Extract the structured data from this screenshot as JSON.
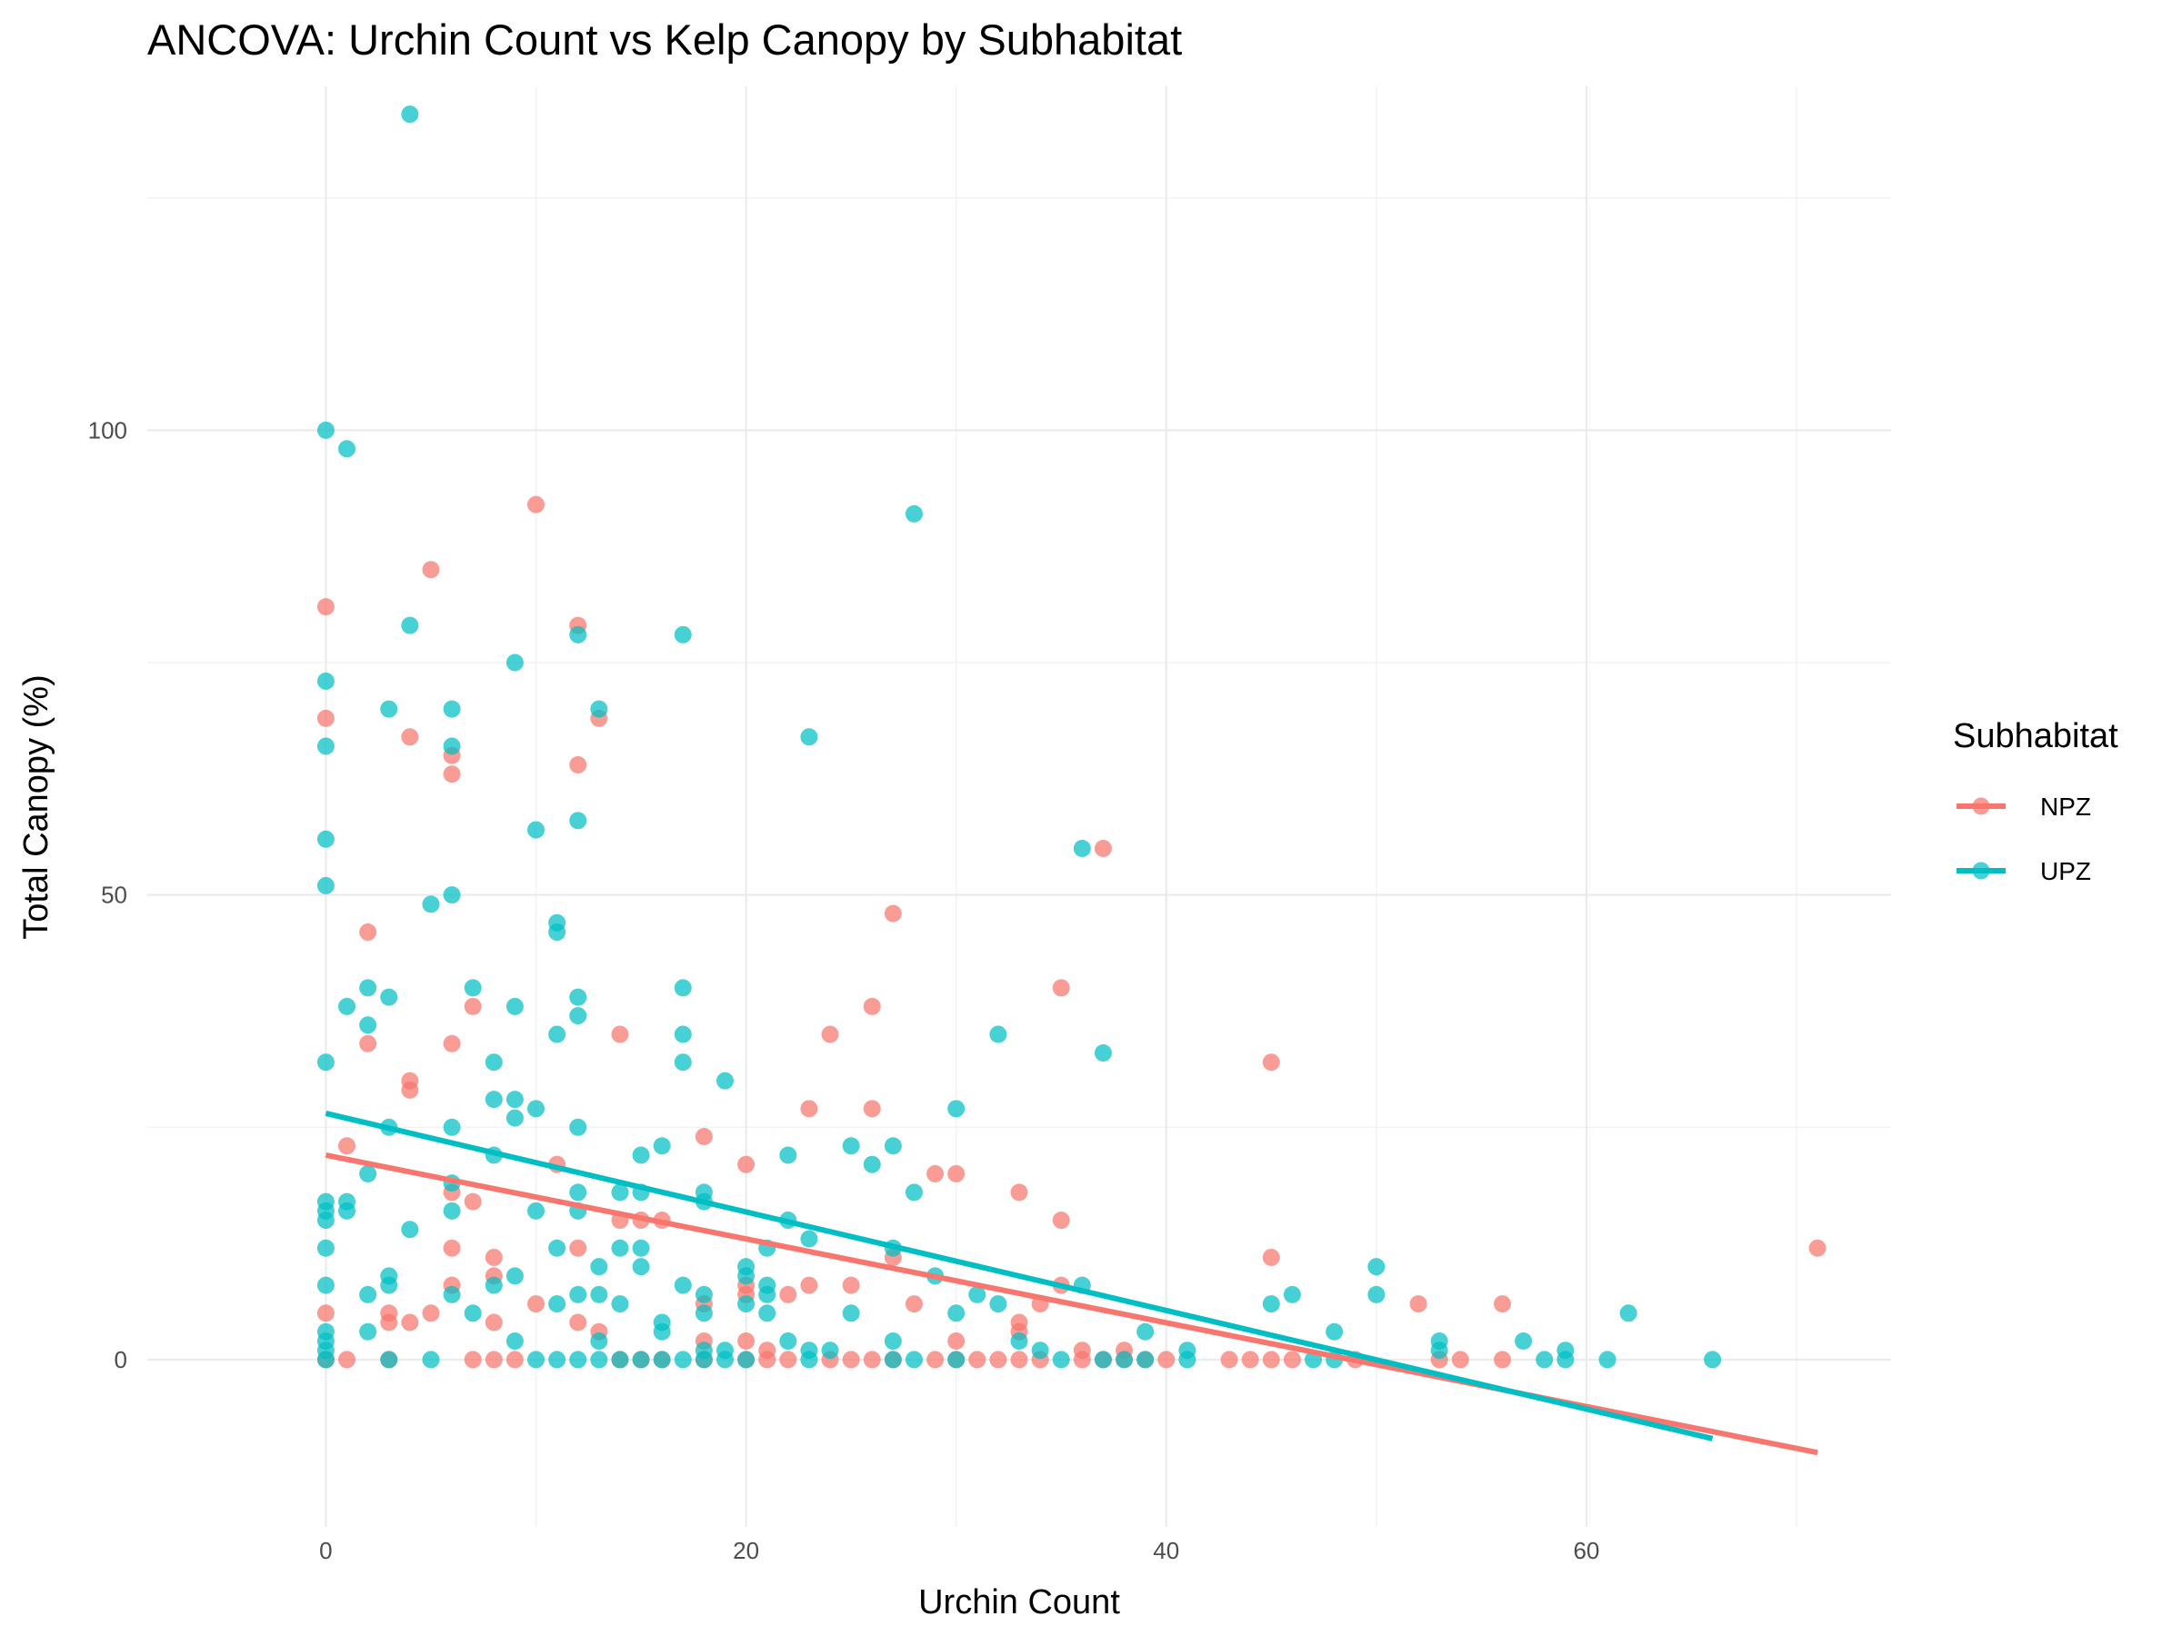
{
  "chart_data": {
    "type": "scatter",
    "title": "ANCOVA: Urchin Count vs Kelp Canopy by Subhabitat",
    "xlabel": "Urchin Count",
    "ylabel": "Total Canopy (%)",
    "xlim": [
      -8.5,
      74.5
    ],
    "ylim": [
      -18,
      137
    ],
    "x_ticks": [
      0,
      20,
      40,
      60
    ],
    "y_ticks": [
      0,
      50,
      100
    ],
    "grid": true,
    "legend": {
      "title": "Subhabitat",
      "position": "right"
    },
    "series": [
      {
        "name": "NPZ",
        "color": "#F8766D",
        "regression_line": {
          "x": [
            0,
            71
          ],
          "y": [
            22,
            -10
          ]
        },
        "points": [
          [
            0,
            81
          ],
          [
            0,
            69
          ],
          [
            0,
            5
          ],
          [
            0,
            0
          ],
          [
            1,
            23
          ],
          [
            1,
            0
          ],
          [
            2,
            46
          ],
          [
            2,
            34
          ],
          [
            3,
            5
          ],
          [
            3,
            4
          ],
          [
            3,
            0
          ],
          [
            4,
            67
          ],
          [
            4,
            30
          ],
          [
            4,
            29
          ],
          [
            4,
            4
          ],
          [
            5,
            85
          ],
          [
            5,
            5
          ],
          [
            6,
            65
          ],
          [
            6,
            63
          ],
          [
            6,
            34
          ],
          [
            6,
            18
          ],
          [
            6,
            12
          ],
          [
            6,
            8
          ],
          [
            7,
            38
          ],
          [
            7,
            17
          ],
          [
            7,
            0
          ],
          [
            8,
            11
          ],
          [
            8,
            9
          ],
          [
            8,
            4
          ],
          [
            8,
            0
          ],
          [
            9,
            0
          ],
          [
            10,
            92
          ],
          [
            10,
            6
          ],
          [
            11,
            21
          ],
          [
            12,
            79
          ],
          [
            12,
            64
          ],
          [
            12,
            12
          ],
          [
            12,
            4
          ],
          [
            13,
            69
          ],
          [
            13,
            3
          ],
          [
            14,
            35
          ],
          [
            14,
            15
          ],
          [
            14,
            0
          ],
          [
            15,
            15
          ],
          [
            15,
            0
          ],
          [
            16,
            15
          ],
          [
            16,
            0
          ],
          [
            18,
            24
          ],
          [
            18,
            6
          ],
          [
            18,
            2
          ],
          [
            18,
            0
          ],
          [
            20,
            21
          ],
          [
            20,
            8
          ],
          [
            20,
            7
          ],
          [
            20,
            2
          ],
          [
            20,
            0
          ],
          [
            21,
            1
          ],
          [
            21,
            0
          ],
          [
            22,
            7
          ],
          [
            22,
            0
          ],
          [
            23,
            27
          ],
          [
            23,
            8
          ],
          [
            24,
            35
          ],
          [
            24,
            0
          ],
          [
            25,
            8
          ],
          [
            25,
            0
          ],
          [
            26,
            38
          ],
          [
            26,
            27
          ],
          [
            26,
            0
          ],
          [
            27,
            48
          ],
          [
            27,
            11
          ],
          [
            27,
            0
          ],
          [
            28,
            6
          ],
          [
            29,
            20
          ],
          [
            29,
            0
          ],
          [
            30,
            20
          ],
          [
            30,
            2
          ],
          [
            30,
            0
          ],
          [
            31,
            0
          ],
          [
            32,
            0
          ],
          [
            33,
            18
          ],
          [
            33,
            4
          ],
          [
            33,
            3
          ],
          [
            33,
            0
          ],
          [
            34,
            6
          ],
          [
            34,
            0
          ],
          [
            35,
            40
          ],
          [
            35,
            15
          ],
          [
            35,
            8
          ],
          [
            36,
            1
          ],
          [
            36,
            0
          ],
          [
            37,
            55
          ],
          [
            37,
            0
          ],
          [
            38,
            1
          ],
          [
            38,
            0
          ],
          [
            39,
            0
          ],
          [
            40,
            0
          ],
          [
            43,
            0
          ],
          [
            44,
            0
          ],
          [
            45,
            32
          ],
          [
            45,
            11
          ],
          [
            45,
            0
          ],
          [
            46,
            0
          ],
          [
            49,
            0
          ],
          [
            52,
            6
          ],
          [
            53,
            0
          ],
          [
            54,
            0
          ],
          [
            56,
            6
          ],
          [
            56,
            0
          ],
          [
            71,
            12
          ]
        ]
      },
      {
        "name": "UPZ",
        "color": "#00BFC4",
        "regression_line": {
          "x": [
            0,
            66
          ],
          "y": [
            26.5,
            -8.5
          ]
        },
        "points": [
          [
            0,
            100
          ],
          [
            0,
            73
          ],
          [
            0,
            66
          ],
          [
            0,
            56
          ],
          [
            0,
            51
          ],
          [
            0,
            32
          ],
          [
            0,
            17
          ],
          [
            0,
            16
          ],
          [
            0,
            15
          ],
          [
            0,
            12
          ],
          [
            0,
            8
          ],
          [
            0,
            3
          ],
          [
            0,
            2
          ],
          [
            0,
            1
          ],
          [
            0,
            0
          ],
          [
            1,
            98
          ],
          [
            1,
            38
          ],
          [
            1,
            17
          ],
          [
            1,
            16
          ],
          [
            2,
            40
          ],
          [
            2,
            36
          ],
          [
            2,
            20
          ],
          [
            2,
            7
          ],
          [
            2,
            3
          ],
          [
            3,
            70
          ],
          [
            3,
            39
          ],
          [
            3,
            25
          ],
          [
            3,
            9
          ],
          [
            3,
            8
          ],
          [
            3,
            0
          ],
          [
            4,
            134
          ],
          [
            4,
            79
          ],
          [
            4,
            14
          ],
          [
            5,
            49
          ],
          [
            5,
            0
          ],
          [
            6,
            70
          ],
          [
            6,
            66
          ],
          [
            6,
            50
          ],
          [
            6,
            25
          ],
          [
            6,
            19
          ],
          [
            6,
            16
          ],
          [
            6,
            7
          ],
          [
            7,
            40
          ],
          [
            7,
            5
          ],
          [
            8,
            32
          ],
          [
            8,
            28
          ],
          [
            8,
            22
          ],
          [
            8,
            8
          ],
          [
            9,
            75
          ],
          [
            9,
            38
          ],
          [
            9,
            28
          ],
          [
            9,
            26
          ],
          [
            9,
            9
          ],
          [
            9,
            2
          ],
          [
            10,
            57
          ],
          [
            10,
            27
          ],
          [
            10,
            16
          ],
          [
            10,
            0
          ],
          [
            11,
            47
          ],
          [
            11,
            46
          ],
          [
            11,
            35
          ],
          [
            11,
            12
          ],
          [
            11,
            6
          ],
          [
            11,
            0
          ],
          [
            12,
            78
          ],
          [
            12,
            58
          ],
          [
            12,
            39
          ],
          [
            12,
            37
          ],
          [
            12,
            25
          ],
          [
            12,
            18
          ],
          [
            12,
            16
          ],
          [
            12,
            7
          ],
          [
            12,
            0
          ],
          [
            13,
            70
          ],
          [
            13,
            10
          ],
          [
            13,
            7
          ],
          [
            13,
            2
          ],
          [
            13,
            0
          ],
          [
            14,
            18
          ],
          [
            14,
            12
          ],
          [
            14,
            6
          ],
          [
            14,
            0
          ],
          [
            15,
            22
          ],
          [
            15,
            18
          ],
          [
            15,
            12
          ],
          [
            15,
            10
          ],
          [
            15,
            0
          ],
          [
            16,
            23
          ],
          [
            16,
            4
          ],
          [
            16,
            3
          ],
          [
            16,
            0
          ],
          [
            17,
            78
          ],
          [
            17,
            40
          ],
          [
            17,
            35
          ],
          [
            17,
            32
          ],
          [
            17,
            8
          ],
          [
            17,
            0
          ],
          [
            18,
            18
          ],
          [
            18,
            17
          ],
          [
            18,
            7
          ],
          [
            18,
            5
          ],
          [
            18,
            1
          ],
          [
            18,
            0
          ],
          [
            19,
            30
          ],
          [
            19,
            1
          ],
          [
            19,
            0
          ],
          [
            20,
            10
          ],
          [
            20,
            9
          ],
          [
            20,
            6
          ],
          [
            20,
            0
          ],
          [
            21,
            12
          ],
          [
            21,
            8
          ],
          [
            21,
            7
          ],
          [
            21,
            5
          ],
          [
            22,
            22
          ],
          [
            22,
            15
          ],
          [
            22,
            2
          ],
          [
            23,
            67
          ],
          [
            23,
            13
          ],
          [
            23,
            1
          ],
          [
            23,
            0
          ],
          [
            24,
            1
          ],
          [
            25,
            23
          ],
          [
            25,
            5
          ],
          [
            26,
            21
          ],
          [
            27,
            23
          ],
          [
            27,
            12
          ],
          [
            27,
            2
          ],
          [
            27,
            0
          ],
          [
            28,
            91
          ],
          [
            28,
            18
          ],
          [
            28,
            0
          ],
          [
            29,
            9
          ],
          [
            30,
            27
          ],
          [
            30,
            5
          ],
          [
            30,
            0
          ],
          [
            31,
            7
          ],
          [
            32,
            35
          ],
          [
            32,
            6
          ],
          [
            33,
            2
          ],
          [
            34,
            1
          ],
          [
            35,
            0
          ],
          [
            36,
            55
          ],
          [
            36,
            8
          ],
          [
            37,
            33
          ],
          [
            37,
            0
          ],
          [
            38,
            0
          ],
          [
            39,
            3
          ],
          [
            39,
            0
          ],
          [
            41,
            1
          ],
          [
            41,
            0
          ],
          [
            45,
            6
          ],
          [
            46,
            7
          ],
          [
            47,
            0
          ],
          [
            48,
            3
          ],
          [
            48,
            0
          ],
          [
            50,
            10
          ],
          [
            50,
            7
          ],
          [
            53,
            2
          ],
          [
            53,
            1
          ],
          [
            57,
            2
          ],
          [
            58,
            0
          ],
          [
            59,
            1
          ],
          [
            59,
            0
          ],
          [
            61,
            0
          ],
          [
            62,
            5
          ],
          [
            66,
            0
          ]
        ]
      }
    ]
  }
}
